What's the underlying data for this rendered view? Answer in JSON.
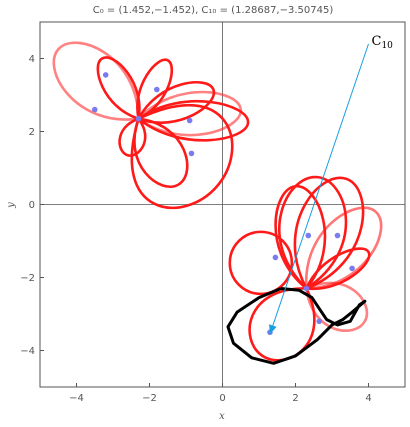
{
  "chart_data": {
    "type": "line",
    "title": "C₀ = (1.452,−1.452),  C₁₀ = (1.28687,−3.50745)",
    "xlabel": "x",
    "ylabel": "y",
    "xlim": [
      -5,
      5
    ],
    "ylim": [
      -5,
      5
    ],
    "x_ticks": [
      -4,
      -2,
      0,
      2,
      4
    ],
    "y_ticks": [
      -4,
      -2,
      0,
      2,
      4
    ],
    "x_tick_labels": [
      "−4",
      "−2",
      "0",
      "2",
      "4"
    ],
    "y_tick_labels": [
      "−4",
      "−2",
      "0",
      "2",
      "4"
    ],
    "grid": false,
    "colors": {
      "curves": "#ff1a1a",
      "final_curve": "#000000",
      "points": "#7b7bf0",
      "arrow": "#1a9fe0",
      "axes": "#555555"
    },
    "annotation": {
      "label_main": "C",
      "label_sub": "10",
      "arrow_from": [
        4.0,
        4.4
      ],
      "arrow_to": [
        1.3,
        -3.55
      ]
    },
    "centers_upper_left": [
      {
        "x": -2.3,
        "y": 2.35
      },
      {
        "x": -0.9,
        "y": 2.3
      },
      {
        "x": -1.8,
        "y": 3.15
      },
      {
        "x": -3.2,
        "y": 3.55
      },
      {
        "x": -3.5,
        "y": 2.6
      },
      {
        "x": -0.85,
        "y": 1.4
      }
    ],
    "centers_lower_right": [
      {
        "x": 2.3,
        "y": -2.3
      },
      {
        "x": 1.45,
        "y": -1.45
      },
      {
        "x": 2.35,
        "y": -0.85
      },
      {
        "x": 3.15,
        "y": -0.85
      },
      {
        "x": 3.55,
        "y": -1.75
      },
      {
        "x": 2.65,
        "y": -3.2
      },
      {
        "x": 1.3,
        "y": -3.5
      }
    ],
    "loops_upper_left": [
      {
        "tip": [
          -0.25,
          3.15
        ],
        "width": 0.35,
        "alpha": 1.0
      },
      {
        "tip": [
          -4.5,
          4.25
        ],
        "width": 0.45,
        "alpha": 0.55
      },
      {
        "tip": [
          -3.3,
          4.0
        ],
        "width": 0.35,
        "alpha": 1.0
      },
      {
        "tip": [
          -1.5,
          3.95
        ],
        "width": 0.32,
        "alpha": 1.0
      },
      {
        "tip": [
          0.7,
          2.25
        ],
        "width": 0.3,
        "alpha": 1.0
      },
      {
        "tip": [
          -0.15,
          0.5
        ],
        "width": 0.9,
        "alpha": 1.0
      },
      {
        "tip": [
          0.5,
          2.6
        ],
        "width": 0.35,
        "alpha": 0.55
      },
      {
        "tip": [
          -2.6,
          1.35
        ],
        "width": 0.55,
        "alpha": 1.0
      },
      {
        "tip": [
          -1.2,
          0.55
        ],
        "width": 0.5,
        "alpha": 1.0
      }
    ],
    "loops_lower_right": [
      {
        "tip": [
          2.6,
          0.75
        ],
        "width": 0.5,
        "alpha": 1.0
      },
      {
        "tip": [
          3.4,
          0.7
        ],
        "width": 0.45,
        "alpha": 1.0
      },
      {
        "tip": [
          4.2,
          -0.2
        ],
        "width": 0.42,
        "alpha": 0.6
      },
      {
        "tip": [
          4.0,
          -1.3
        ],
        "width": 0.3,
        "alpha": 1.0
      },
      {
        "tip": [
          2.0,
          0.5
        ],
        "width": 0.4,
        "alpha": 1.0
      },
      {
        "tip": [
          3.9,
          -3.2
        ],
        "width": 0.55,
        "alpha": 0.55
      },
      {
        "tip": [
          1.1,
          -4.15
        ],
        "width": 0.65,
        "alpha": 1.0
      }
    ],
    "circle_lower_right": {
      "cx": 1.05,
      "cy": -1.6,
      "r": 0.85
    },
    "final_curve_points": [
      [
        1.6,
        -2.3
      ],
      [
        1.0,
        -2.55
      ],
      [
        0.4,
        -2.95
      ],
      [
        0.15,
        -3.35
      ],
      [
        0.3,
        -3.8
      ],
      [
        0.8,
        -4.2
      ],
      [
        1.4,
        -4.35
      ],
      [
        2.0,
        -4.15
      ],
      [
        2.6,
        -3.7
      ],
      [
        3.0,
        -3.3
      ],
      [
        3.3,
        -3.15
      ],
      [
        3.55,
        -2.95
      ],
      [
        3.9,
        -2.65
      ],
      [
        3.75,
        -2.75
      ],
      [
        3.5,
        -3.2
      ],
      [
        3.15,
        -3.3
      ],
      [
        2.85,
        -3.15
      ],
      [
        2.65,
        -2.85
      ],
      [
        2.45,
        -2.55
      ],
      [
        2.1,
        -2.35
      ],
      [
        1.6,
        -2.3
      ]
    ]
  }
}
